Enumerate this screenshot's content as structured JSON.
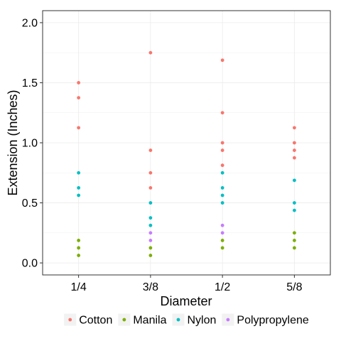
{
  "chart_data": {
    "type": "scatter",
    "title": "",
    "xlabel": "Diameter",
    "ylabel": "Extension (Inches)",
    "categories": [
      "1/4",
      "3/8",
      "1/2",
      "5/8"
    ],
    "ylim": [
      -0.1,
      2.1
    ],
    "yticks": [
      0.0,
      0.5,
      1.0,
      1.5,
      2.0
    ],
    "ytick_labels": [
      "0.0",
      "0.5",
      "1.0",
      "1.5",
      "2.0"
    ],
    "grid": true,
    "legend_position": "bottom",
    "series": [
      {
        "name": "Cotton",
        "color": "#F8766D",
        "points": [
          {
            "x": "1/4",
            "y": 1.5
          },
          {
            "x": "1/4",
            "y": 1.375
          },
          {
            "x": "1/4",
            "y": 1.125
          },
          {
            "x": "3/8",
            "y": 1.75
          },
          {
            "x": "3/8",
            "y": 0.9375
          },
          {
            "x": "3/8",
            "y": 0.75
          },
          {
            "x": "3/8",
            "y": 0.625
          },
          {
            "x": "1/2",
            "y": 1.6875
          },
          {
            "x": "1/2",
            "y": 1.25
          },
          {
            "x": "1/2",
            "y": 1.0
          },
          {
            "x": "1/2",
            "y": 0.9375
          },
          {
            "x": "1/2",
            "y": 0.8125
          },
          {
            "x": "5/8",
            "y": 1.125
          },
          {
            "x": "5/8",
            "y": 1.0
          },
          {
            "x": "5/8",
            "y": 0.9375
          },
          {
            "x": "5/8",
            "y": 0.875
          }
        ]
      },
      {
        "name": "Manila",
        "color": "#7CAE00",
        "points": [
          {
            "x": "1/4",
            "y": 0.1875
          },
          {
            "x": "1/4",
            "y": 0.125
          },
          {
            "x": "1/4",
            "y": 0.0625
          },
          {
            "x": "3/8",
            "y": 0.125
          },
          {
            "x": "3/8",
            "y": 0.0625
          },
          {
            "x": "1/2",
            "y": 0.1875
          },
          {
            "x": "1/2",
            "y": 0.125
          },
          {
            "x": "5/8",
            "y": 0.25
          },
          {
            "x": "5/8",
            "y": 0.1875
          },
          {
            "x": "5/8",
            "y": 0.125
          }
        ]
      },
      {
        "name": "Nylon",
        "color": "#00BFC4",
        "points": [
          {
            "x": "1/4",
            "y": 0.75
          },
          {
            "x": "1/4",
            "y": 0.625
          },
          {
            "x": "1/4",
            "y": 0.5625
          },
          {
            "x": "3/8",
            "y": 0.5
          },
          {
            "x": "3/8",
            "y": 0.375
          },
          {
            "x": "3/8",
            "y": 0.3125
          },
          {
            "x": "1/2",
            "y": 0.75
          },
          {
            "x": "1/2",
            "y": 0.625
          },
          {
            "x": "1/2",
            "y": 0.5625
          },
          {
            "x": "1/2",
            "y": 0.5
          },
          {
            "x": "5/8",
            "y": 0.6875
          },
          {
            "x": "5/8",
            "y": 0.5
          },
          {
            "x": "5/8",
            "y": 0.4375
          }
        ]
      },
      {
        "name": "Polypropylene",
        "color": "#C77CFF",
        "points": [
          {
            "x": "3/8",
            "y": 0.25
          },
          {
            "x": "3/8",
            "y": 0.1875
          },
          {
            "x": "1/2",
            "y": 0.3125
          },
          {
            "x": "1/2",
            "y": 0.25
          }
        ]
      }
    ]
  }
}
